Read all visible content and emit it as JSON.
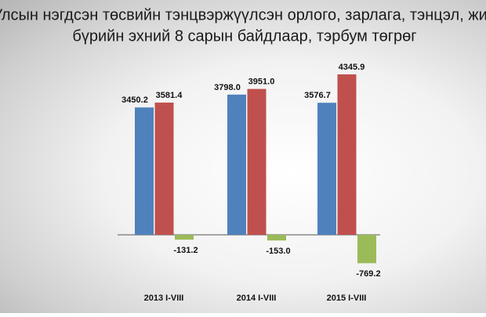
{
  "chart_data": {
    "type": "bar",
    "title": [
      "Улсын нэгдсэн төсвийн тэнцвэржүүлсэн орлого, зарлага, тэнцэл, жил",
      "бүрийн эхний 8 сарын байдлаар, тэрбум төгрөг"
    ],
    "categories": [
      "2013 I-VIII",
      "2014 I-VIII",
      "2015 I-VIII"
    ],
    "series": [
      {
        "color": "#4f81bd",
        "values": [
          3450.2,
          3798.0,
          3576.7
        ],
        "value_labels": [
          "3450.2",
          "3798.0",
          "3576.7"
        ]
      },
      {
        "color": "#c0504d",
        "values": [
          3581.4,
          3951.0,
          4345.9
        ],
        "value_labels": [
          "3581.4",
          "3951.0",
          "4345.9"
        ]
      },
      {
        "color": "#9bbb59",
        "values": [
          -131.2,
          -153.0,
          -769.2
        ],
        "value_labels": [
          "-131.2",
          "-153.0",
          "-769.2"
        ]
      }
    ]
  }
}
